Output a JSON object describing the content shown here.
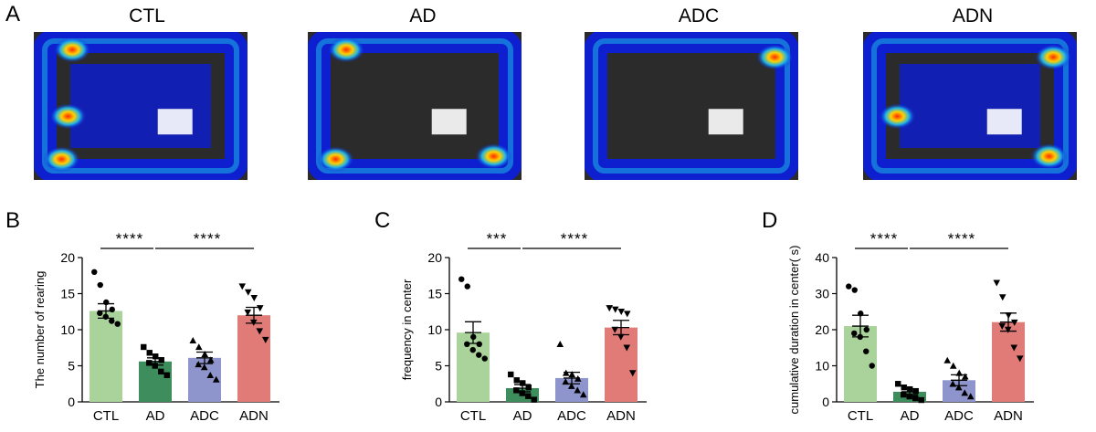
{
  "panel_labels": {
    "a": "A",
    "b": "B",
    "c": "C",
    "d": "D"
  },
  "heatmaps": [
    {
      "title": "CTL",
      "hotspots": [
        "bottom-left",
        "left",
        "top-left"
      ]
    },
    {
      "title": "AD",
      "hotspots": [
        "top-left",
        "bottom-left",
        "bottom-right"
      ]
    },
    {
      "title": "ADC",
      "hotspots": [
        "top-right"
      ]
    },
    {
      "title": "ADN",
      "hotspots": [
        "bottom-right",
        "left",
        "top-right"
      ]
    }
  ],
  "colors": {
    "CTL": "#a9d39a",
    "AD": "#3e8d5c",
    "ADC": "#8e95cc",
    "ADN": "#e07b78",
    "heat_low": "#0a1ee0",
    "heat_mid": "#1eb4e6",
    "heat_high": "#ff2a00"
  },
  "chart_data": [
    {
      "type": "bar",
      "panel": "B",
      "categories": [
        "CTL",
        "AD",
        "ADC",
        "ADN"
      ],
      "values": [
        12.6,
        5.6,
        6.1,
        12.0
      ],
      "sem": [
        1.0,
        0.5,
        0.8,
        1.1
      ],
      "points": [
        [
          18,
          16.2,
          13.8,
          12.8,
          12.3,
          11.8,
          11.2,
          10.8
        ],
        [
          7.6,
          6.8,
          6.3,
          5.8,
          5.4,
          5.0,
          4.2,
          3.7
        ],
        [
          8.5,
          7.6,
          6.6,
          5.8,
          5.2,
          4.8,
          3.7,
          3.1
        ],
        [
          16.0,
          15.2,
          14.4,
          13.0,
          12.4,
          11.0,
          9.8,
          8.6
        ]
      ],
      "markers": [
        "circle",
        "square",
        "triangle",
        "triangle-down"
      ],
      "ylabel": "The number of rearing",
      "ylim": [
        0,
        20
      ],
      "yticks": [
        0,
        5,
        10,
        15,
        20
      ],
      "significance": [
        {
          "from": 0,
          "to": 1,
          "label": "****"
        },
        {
          "from": 1,
          "to": 3,
          "label": "****"
        }
      ]
    },
    {
      "type": "bar",
      "panel": "C",
      "categories": [
        "CTL",
        "AD",
        "ADC",
        "ADN"
      ],
      "values": [
        9.6,
        1.9,
        3.3,
        10.3
      ],
      "sem": [
        1.5,
        0.5,
        0.8,
        1.0
      ],
      "points": [
        [
          17.0,
          16.0,
          9.0,
          8.0,
          8.0,
          7.2,
          6.5,
          6.0
        ],
        [
          3.8,
          3.0,
          2.6,
          2.0,
          1.6,
          1.2,
          0.8,
          0.3
        ],
        [
          8.0,
          4.0,
          3.8,
          3.2,
          2.8,
          2.2,
          1.6,
          1.0
        ],
        [
          13.0,
          12.8,
          12.5,
          12.2,
          10.0,
          9.0,
          7.5,
          4.0
        ]
      ],
      "markers": [
        "circle",
        "square",
        "triangle",
        "triangle-down"
      ],
      "ylabel": "frequency in center",
      "ylim": [
        0,
        20
      ],
      "yticks": [
        0,
        5,
        10,
        15,
        20
      ],
      "significance": [
        {
          "from": 0,
          "to": 1,
          "label": "***"
        },
        {
          "from": 1,
          "to": 3,
          "label": "****"
        }
      ]
    },
    {
      "type": "bar",
      "panel": "D",
      "categories": [
        "CTL",
        "AD",
        "ADC",
        "ADN"
      ],
      "values": [
        21.0,
        2.8,
        6.0,
        22.1
      ],
      "sem": [
        3.0,
        0.8,
        1.5,
        2.5
      ],
      "points": [
        [
          32.0,
          31.0,
          24.5,
          20.0,
          19.0,
          18.0,
          14.0,
          10.0
        ],
        [
          5.0,
          4.0,
          3.5,
          3.0,
          2.0,
          1.5,
          1.0,
          0.5
        ],
        [
          11.5,
          10.0,
          8.0,
          7.0,
          5.0,
          4.0,
          2.5,
          1.5
        ],
        [
          33.0,
          29.0,
          24.0,
          22.0,
          21.0,
          20.0,
          15.0,
          12.0
        ]
      ],
      "markers": [
        "circle",
        "square",
        "triangle",
        "triangle-down"
      ],
      "ylabel": "cumulative duration in center( s)",
      "ylim": [
        0,
        40
      ],
      "yticks": [
        0,
        10,
        20,
        30,
        40
      ],
      "significance": [
        {
          "from": 0,
          "to": 1,
          "label": "****"
        },
        {
          "from": 1,
          "to": 3,
          "label": "****"
        }
      ]
    }
  ]
}
